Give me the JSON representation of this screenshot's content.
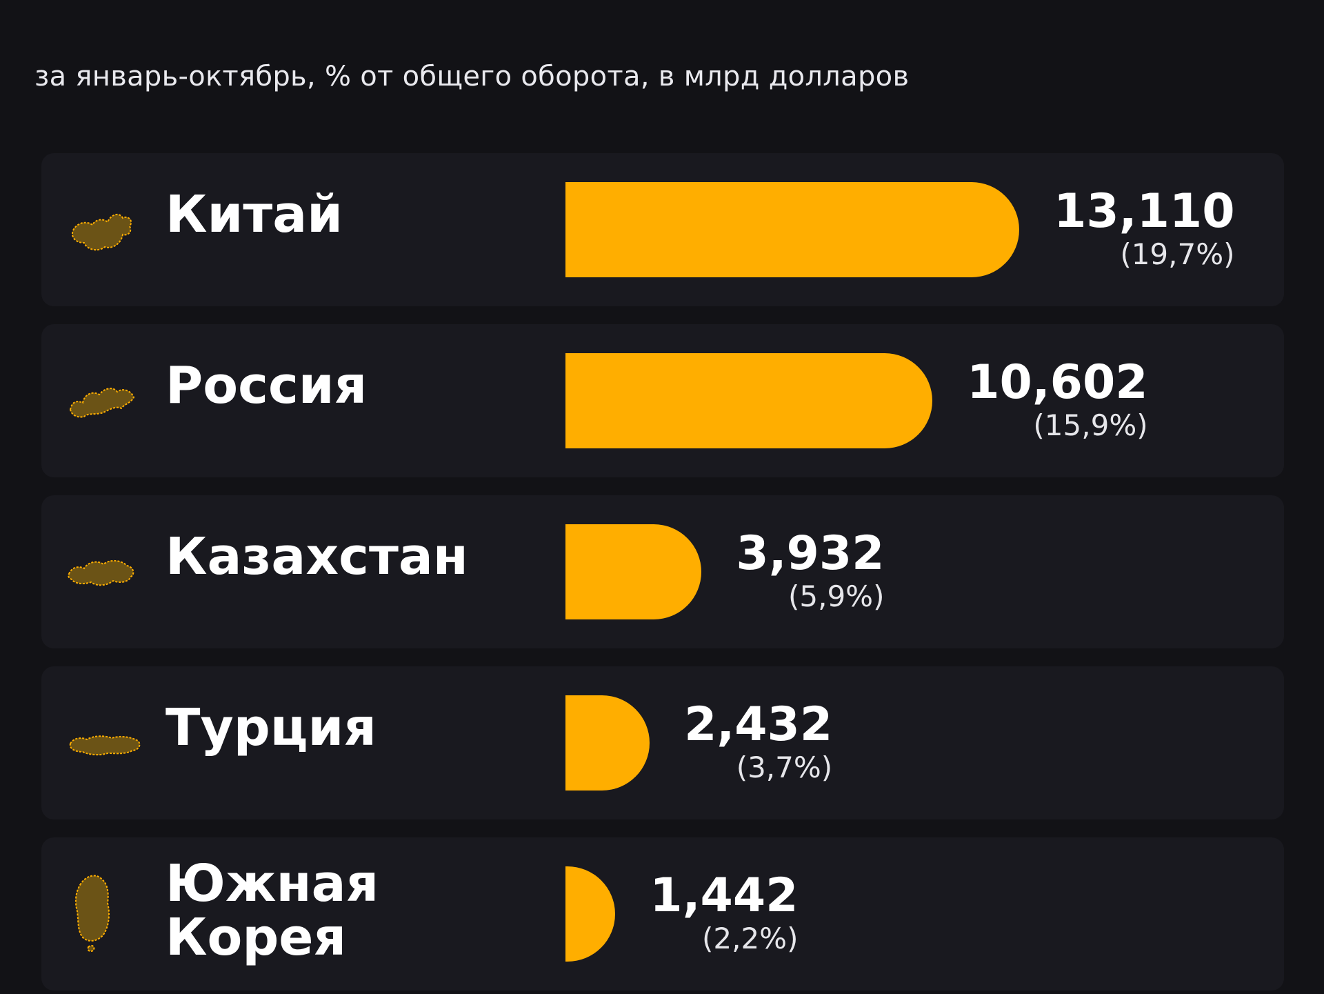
{
  "subtitle": "за январь-октябрь, % от общего оборота, в млрд долларов",
  "chart_data": {
    "type": "bar",
    "orientation": "horizontal",
    "title": "",
    "subtitle": "за январь-октябрь, % от общего оборота, в млрд долларов",
    "categories": [
      "Китай",
      "Россия",
      "Казахстан",
      "Турция",
      "Южная Корея"
    ],
    "values": [
      13.11,
      10.602,
      3.932,
      2.432,
      1.442
    ],
    "value_labels": [
      "13,110",
      "10,602",
      "3,932",
      "2,432",
      "1,442"
    ],
    "percent_labels": [
      "(19,7%)",
      "(15,9%)",
      "(5,9%)",
      "(3,7%)",
      "(2,2%)"
    ],
    "icons": [
      "china-map-icon",
      "russia-map-icon",
      "kazakhstan-map-icon",
      "turkey-map-icon",
      "south-korea-map-icon"
    ],
    "bar_color": "#FFAE00",
    "background_color": "#121216",
    "grid": false
  }
}
